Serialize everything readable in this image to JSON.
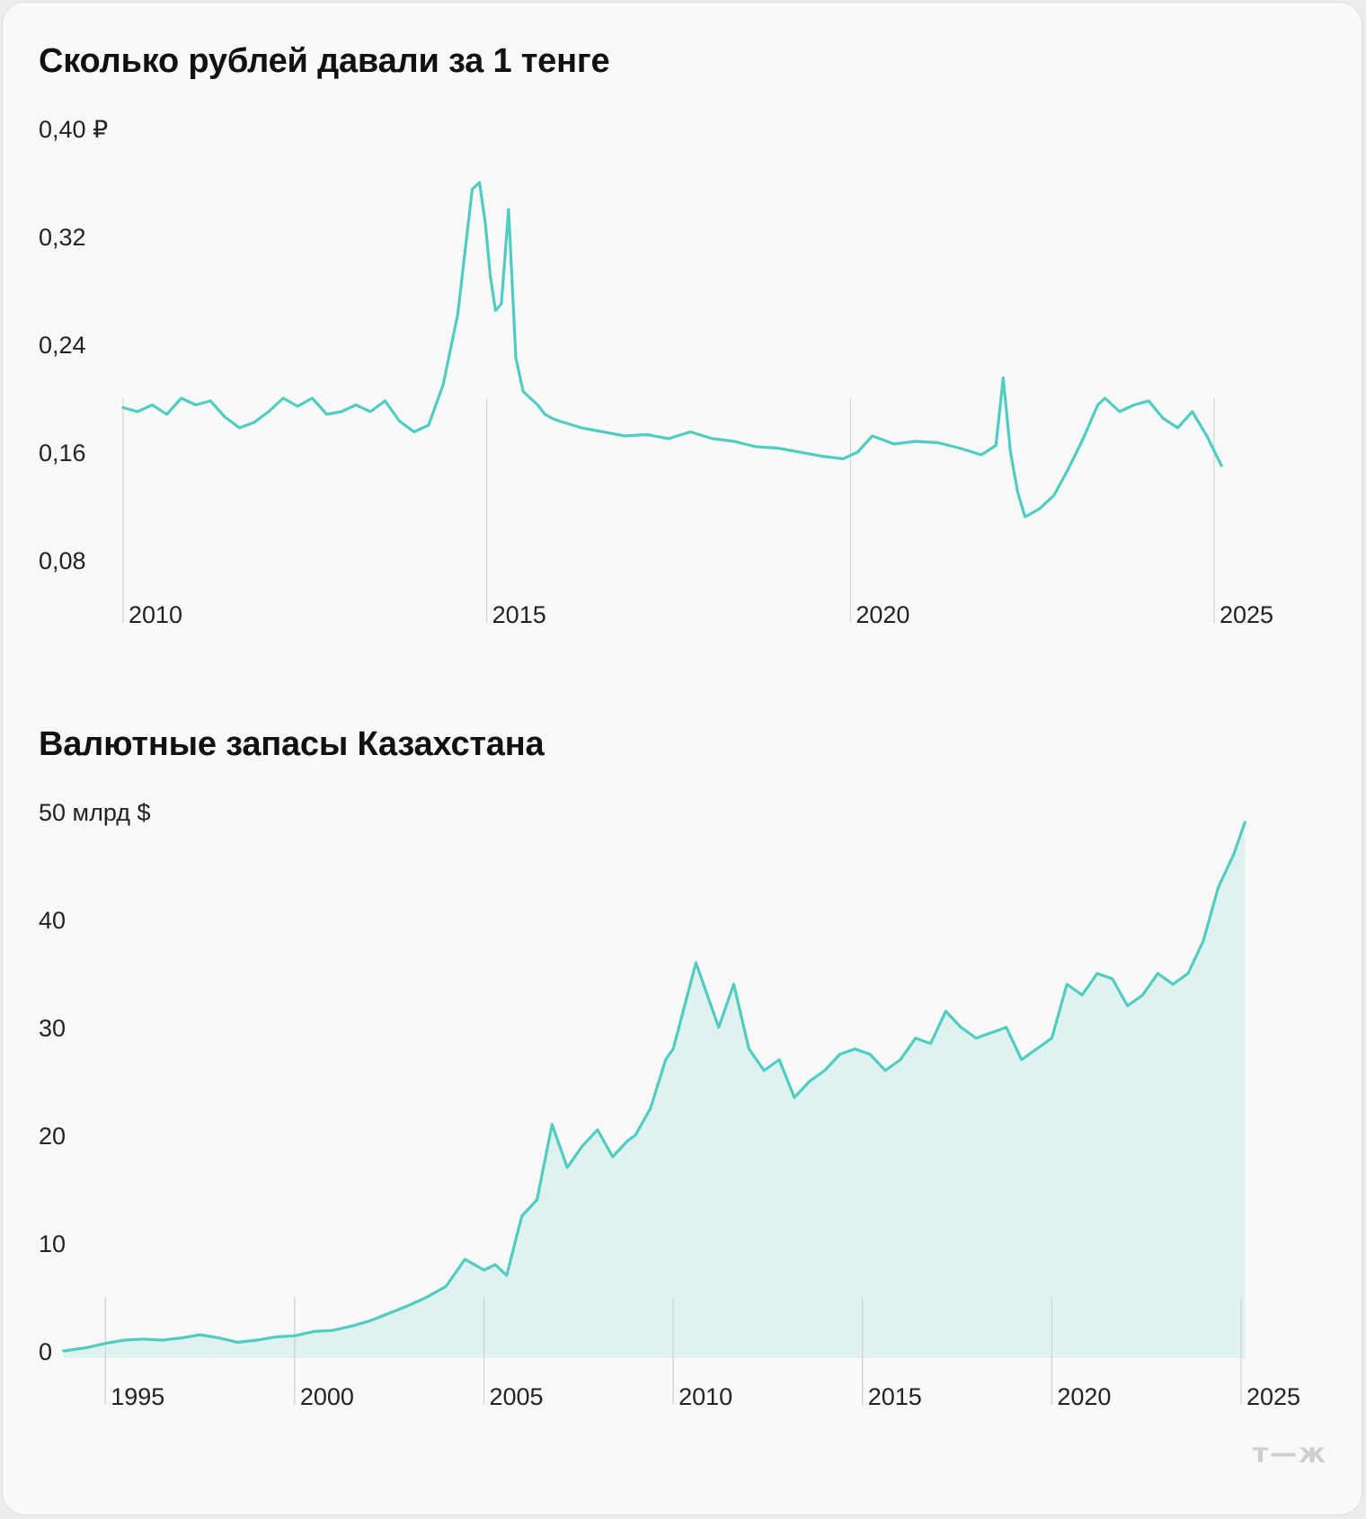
{
  "brand_logo": "т—ж",
  "colors": {
    "line": "#4ecdc0",
    "area": "#dff1f0",
    "grid": "#cccccc"
  },
  "chart_data": [
    {
      "type": "line",
      "title": "Сколько рублей давали за 1 тенге",
      "y_unit_label": "0,40 ₽",
      "y_ticks": [
        0.08,
        0.16,
        0.24,
        0.32,
        0.4
      ],
      "y_tick_labels": [
        "0,08",
        "0,16",
        "0,24",
        "0,32",
        "0,40 ₽"
      ],
      "ylim": [
        0.08,
        0.4
      ],
      "x_ticks": [
        2010,
        2015,
        2020,
        2025
      ],
      "x_tick_labels": [
        "2010",
        "2015",
        "2020",
        "2025"
      ],
      "xlim": [
        2010,
        2025
      ],
      "grid": "vertical at x ticks",
      "series": [
        {
          "x": [
            2010.0,
            2010.2,
            2010.4,
            2010.6,
            2010.8,
            2011.0,
            2011.2,
            2011.4,
            2011.6,
            2011.8,
            2012.0,
            2012.2,
            2012.4,
            2012.6,
            2012.8,
            2013.0,
            2013.2,
            2013.4,
            2013.6,
            2013.8,
            2014.0,
            2014.2,
            2014.4,
            2014.6,
            2014.8,
            2014.9,
            2014.98,
            2015.05,
            2015.12,
            2015.2,
            2015.3,
            2015.4,
            2015.5,
            2015.6,
            2015.7,
            2015.8,
            2015.9,
            2016.0,
            2016.3,
            2016.6,
            2016.9,
            2017.2,
            2017.5,
            2017.8,
            2018.1,
            2018.4,
            2018.7,
            2019.0,
            2019.3,
            2019.6,
            2019.9,
            2020.1,
            2020.3,
            2020.6,
            2020.9,
            2021.2,
            2021.5,
            2021.8,
            2022.0,
            2022.1,
            2022.2,
            2022.3,
            2022.4,
            2022.6,
            2022.8,
            2023.0,
            2023.2,
            2023.4,
            2023.5,
            2023.7,
            2023.9,
            2024.1,
            2024.3,
            2024.5,
            2024.7,
            2024.9,
            2025.1
          ],
          "y": [
            0.193,
            0.19,
            0.195,
            0.188,
            0.2,
            0.195,
            0.198,
            0.186,
            0.178,
            0.182,
            0.19,
            0.2,
            0.194,
            0.2,
            0.188,
            0.19,
            0.195,
            0.19,
            0.198,
            0.183,
            0.175,
            0.18,
            0.21,
            0.262,
            0.355,
            0.36,
            0.33,
            0.29,
            0.265,
            0.27,
            0.34,
            0.23,
            0.205,
            0.2,
            0.195,
            0.188,
            0.185,
            0.183,
            0.178,
            0.175,
            0.172,
            0.173,
            0.17,
            0.175,
            0.17,
            0.168,
            0.164,
            0.163,
            0.16,
            0.157,
            0.155,
            0.16,
            0.172,
            0.166,
            0.168,
            0.167,
            0.163,
            0.158,
            0.165,
            0.215,
            0.16,
            0.13,
            0.112,
            0.118,
            0.128,
            0.148,
            0.17,
            0.195,
            0.2,
            0.19,
            0.195,
            0.198,
            0.185,
            0.178,
            0.19,
            0.172,
            0.15
          ]
        }
      ]
    },
    {
      "type": "area",
      "title": "Валютные запасы Казахстана",
      "y_unit_label": "50 млрд $",
      "y_ticks": [
        0,
        10,
        20,
        30,
        40,
        50
      ],
      "y_tick_labels": [
        "0",
        "10",
        "20",
        "30",
        "40",
        "50 млрд $"
      ],
      "ylim": [
        0,
        50
      ],
      "x_ticks": [
        1995,
        2000,
        2005,
        2010,
        2015,
        2020,
        2025
      ],
      "x_tick_labels": [
        "1995",
        "2000",
        "2005",
        "2010",
        "2015",
        "2020",
        "2025"
      ],
      "xlim": [
        1993,
        2025
      ],
      "grid": "vertical at x ticks",
      "series": [
        {
          "x": [
            1993.9,
            1994.5,
            1995.0,
            1995.5,
            1996.0,
            1996.5,
            1997.0,
            1997.5,
            1998.0,
            1998.5,
            1999.0,
            1999.5,
            2000.0,
            2000.5,
            2001.0,
            2001.5,
            2002.0,
            2002.5,
            2003.0,
            2003.5,
            2004.0,
            2004.5,
            2005.0,
            2005.3,
            2005.6,
            2006.0,
            2006.4,
            2006.8,
            2007.2,
            2007.6,
            2008.0,
            2008.4,
            2008.8,
            2009.0,
            2009.4,
            2009.8,
            2010.0,
            2010.3,
            2010.6,
            2010.9,
            2011.2,
            2011.6,
            2012.0,
            2012.4,
            2012.8,
            2013.2,
            2013.6,
            2014.0,
            2014.4,
            2014.8,
            2015.2,
            2015.6,
            2016.0,
            2016.4,
            2016.8,
            2017.2,
            2017.6,
            2018.0,
            2018.4,
            2018.8,
            2019.2,
            2019.6,
            2020.0,
            2020.4,
            2020.8,
            2021.2,
            2021.6,
            2022.0,
            2022.4,
            2022.8,
            2023.2,
            2023.6,
            2024.0,
            2024.4,
            2024.8,
            2025.1
          ],
          "y": [
            0.0,
            0.3,
            0.7,
            1.0,
            1.1,
            1.0,
            1.2,
            1.5,
            1.2,
            0.8,
            1.0,
            1.3,
            1.4,
            1.8,
            1.9,
            2.3,
            2.8,
            3.5,
            4.2,
            5.0,
            6.0,
            8.5,
            7.5,
            8.0,
            7.0,
            12.5,
            14.0,
            21.0,
            17.0,
            19.0,
            20.5,
            18.0,
            19.5,
            20.0,
            22.5,
            27.0,
            28.0,
            32.0,
            36.0,
            33.0,
            30.0,
            34.0,
            28.0,
            26.0,
            27.0,
            23.5,
            25.0,
            26.0,
            27.5,
            28.0,
            27.5,
            26.0,
            27.0,
            29.0,
            28.5,
            31.5,
            30.0,
            29.0,
            29.5,
            30.0,
            27.0,
            28.0,
            29.0,
            34.0,
            33.0,
            35.0,
            34.5,
            32.0,
            33.0,
            35.0,
            34.0,
            35.0,
            38.0,
            43.0,
            46.0,
            49.0
          ]
        }
      ]
    }
  ]
}
